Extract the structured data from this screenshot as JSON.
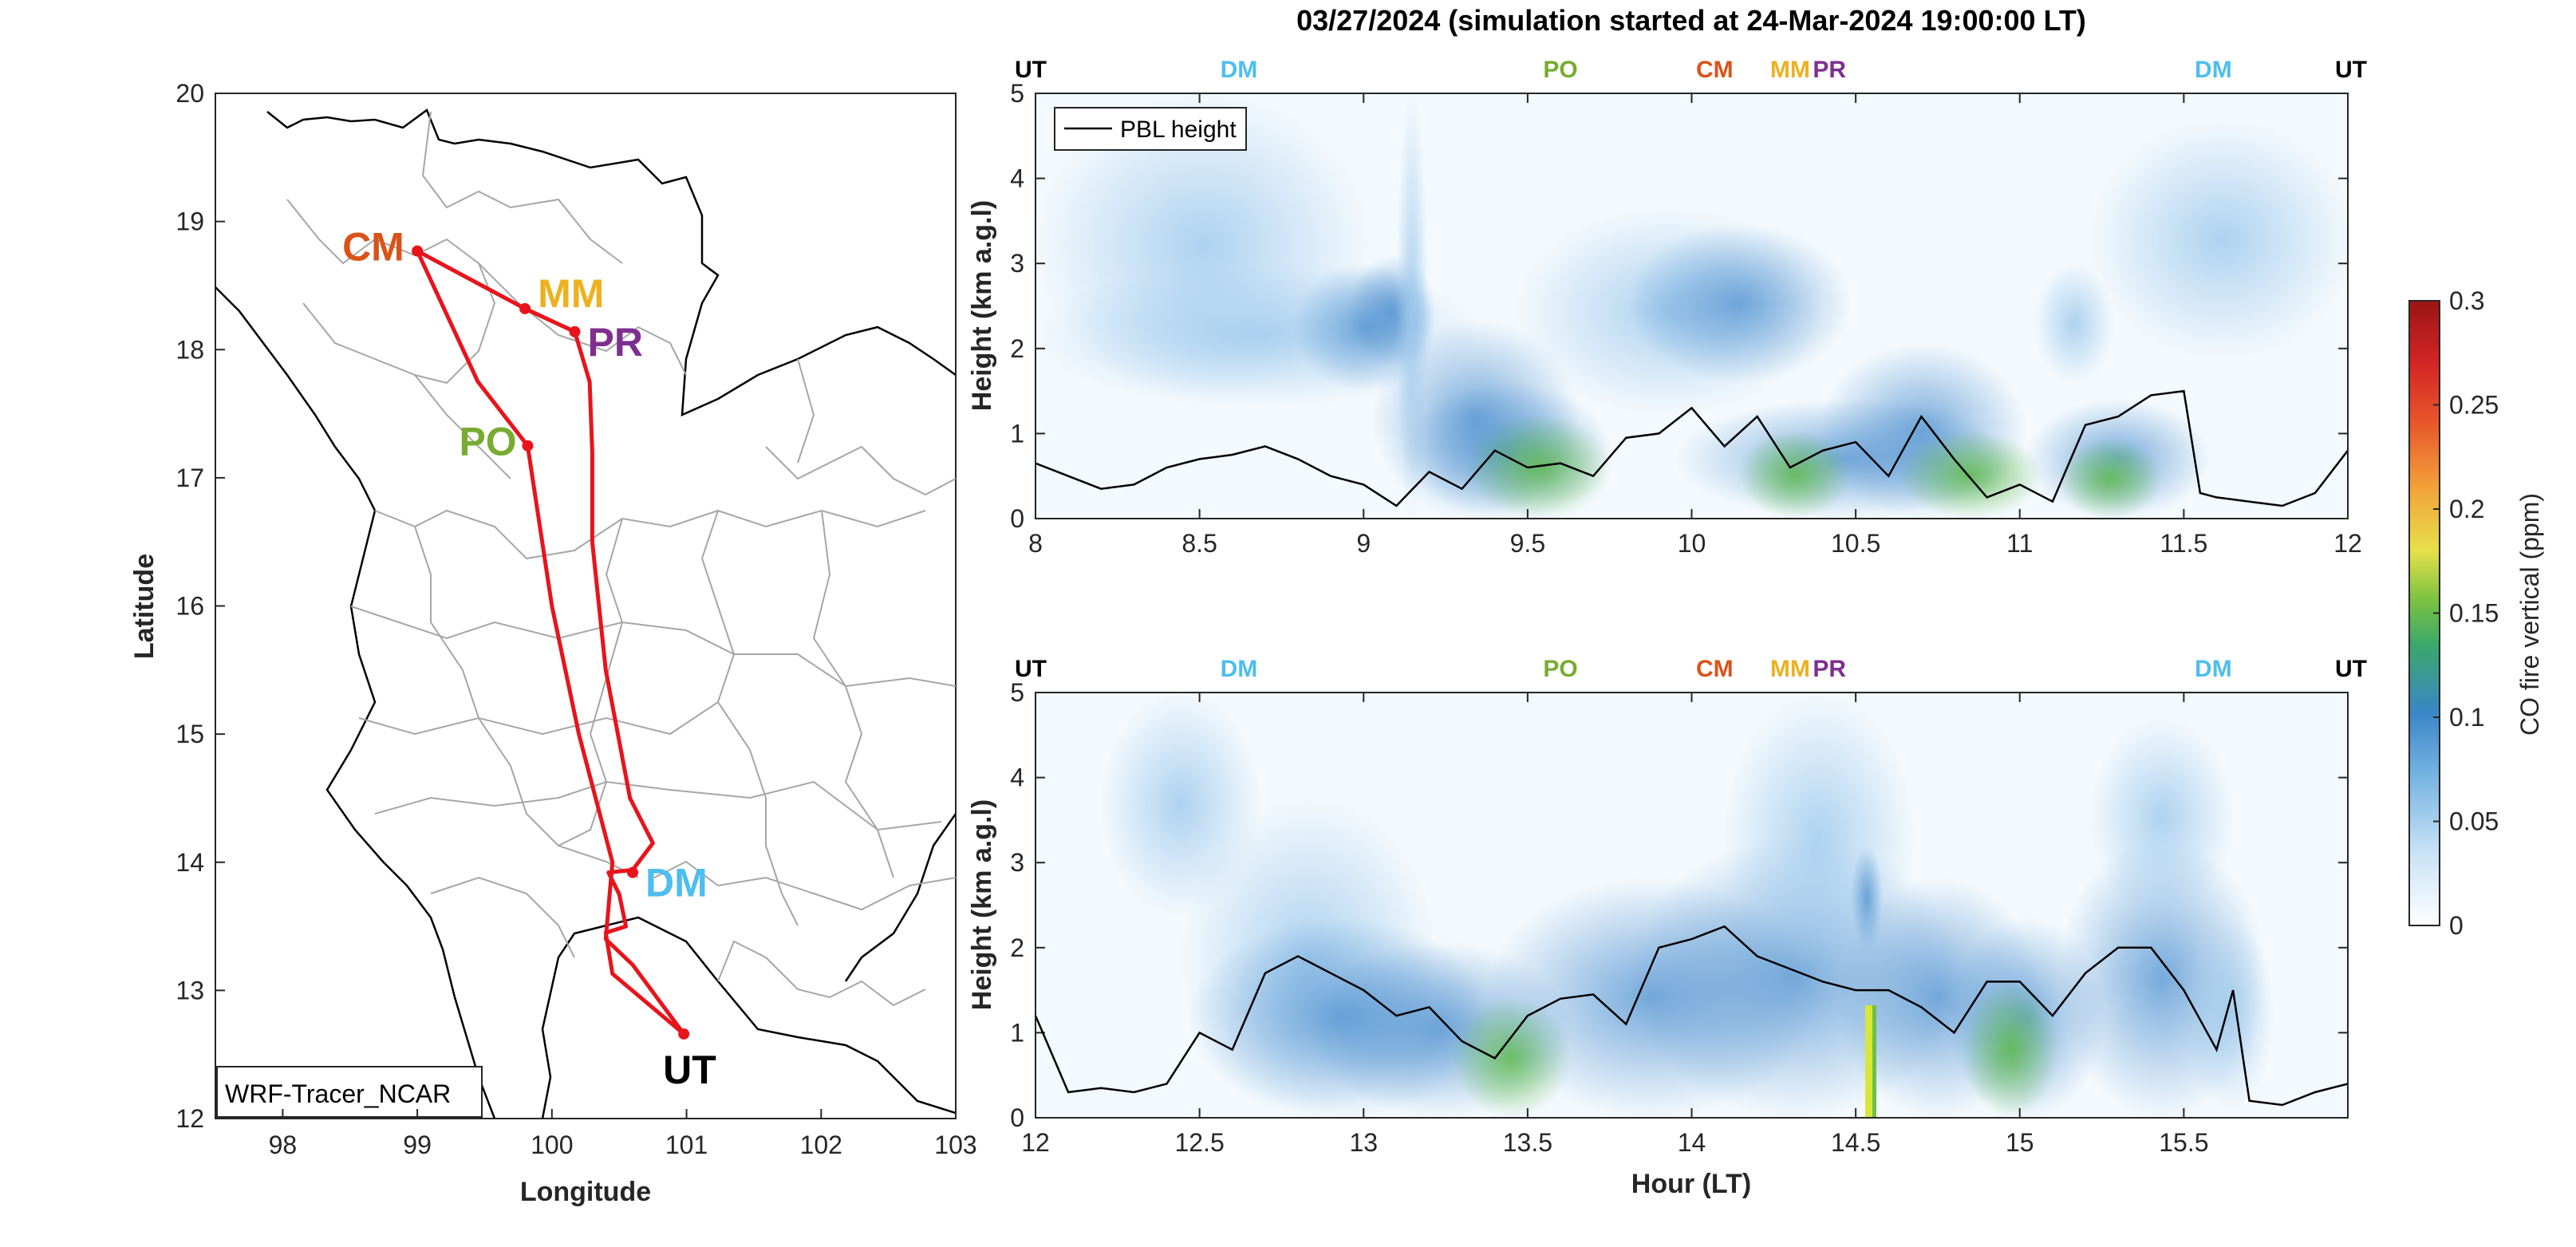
{
  "title": "03/27/2024 (simulation started at 24-Mar-2024 19:00:00 LT)",
  "map": {
    "xlabel": "Longitude",
    "ylabel": "Latitude",
    "xticks": [
      98,
      99,
      100,
      101,
      102,
      103
    ],
    "yticks": [
      12,
      13,
      14,
      15,
      16,
      17,
      18,
      19,
      20
    ],
    "xlim": [
      97.5,
      103
    ],
    "ylim": [
      12,
      20
    ],
    "legend": "WRF-Tracer_NCAR",
    "route_color": "#e8141b",
    "sites": [
      {
        "code": "CM",
        "lon": 99.0,
        "lat": 18.77,
        "color": "#d95319"
      },
      {
        "code": "MM",
        "lon": 99.8,
        "lat": 18.32,
        "color": "#edb120"
      },
      {
        "code": "PR",
        "lon": 100.17,
        "lat": 18.14,
        "color": "#7e2f8e"
      },
      {
        "code": "PO",
        "lon": 99.82,
        "lat": 17.25,
        "color": "#77ac30"
      },
      {
        "code": "DM",
        "lon": 100.6,
        "lat": 13.92,
        "color": "#4dbeee"
      },
      {
        "code": "UT",
        "lon": 100.98,
        "lat": 12.66,
        "color": "#000000"
      }
    ],
    "route": [
      [
        100.98,
        12.66
      ],
      [
        100.45,
        13.13
      ],
      [
        100.4,
        13.45
      ],
      [
        100.55,
        13.5
      ],
      [
        100.5,
        13.75
      ],
      [
        100.42,
        13.92
      ],
      [
        100.6,
        13.94
      ],
      [
        100.75,
        14.15
      ],
      [
        100.58,
        14.5
      ],
      [
        100.4,
        15.5
      ],
      [
        100.3,
        16.5
      ],
      [
        100.3,
        17.2
      ],
      [
        100.28,
        17.75
      ],
      [
        100.17,
        18.14
      ],
      [
        99.8,
        18.32
      ],
      [
        99.0,
        18.77
      ],
      [
        99.45,
        17.75
      ],
      [
        99.82,
        17.25
      ],
      [
        100.0,
        16.0
      ],
      [
        100.2,
        15.0
      ],
      [
        100.45,
        14.0
      ],
      [
        100.4,
        13.4
      ],
      [
        100.6,
        13.2
      ],
      [
        100.98,
        12.66
      ]
    ]
  },
  "panels": [
    {
      "id": "top",
      "ylabel": "Height (km a.g.l)",
      "xlabel": "",
      "xlim": [
        8,
        12
      ],
      "ylim": [
        0,
        5
      ],
      "xticks": [
        8,
        8.5,
        9,
        9.5,
        10,
        10.5,
        11,
        11.5,
        12
      ],
      "yticks": [
        0,
        1,
        2,
        3,
        4,
        5
      ],
      "legend": "PBL height",
      "site_labels": [
        {
          "text": "UT",
          "x": 8,
          "color": "#000000"
        },
        {
          "text": "DM",
          "x": 8.62,
          "color": "#4dbeee"
        },
        {
          "text": "PO",
          "x": 9.6,
          "color": "#77ac30"
        },
        {
          "text": "CM",
          "x": 10.07,
          "color": "#d95319"
        },
        {
          "text": "MM",
          "x": 10.3,
          "color": "#edb120"
        },
        {
          "text": "PR",
          "x": 10.42,
          "color": "#7e2f8e"
        },
        {
          "text": "DM",
          "x": 11.59,
          "color": "#4dbeee"
        },
        {
          "text": "UT",
          "x": 12,
          "color": "#000000"
        }
      ]
    },
    {
      "id": "bottom",
      "ylabel": "Height (km a.g.l)",
      "xlabel": "Hour (LT)",
      "xlim": [
        12,
        16
      ],
      "ylim": [
        0,
        5
      ],
      "xticks": [
        12,
        12.5,
        13,
        13.5,
        14,
        14.5,
        15,
        15.5
      ],
      "yticks": [
        0,
        1,
        2,
        3,
        4,
        5
      ],
      "legend": "",
      "site_labels": [
        {
          "text": "UT",
          "x": 12,
          "color": "#000000"
        },
        {
          "text": "DM",
          "x": 12.62,
          "color": "#4dbeee"
        },
        {
          "text": "PO",
          "x": 13.6,
          "color": "#77ac30"
        },
        {
          "text": "CM",
          "x": 14.07,
          "color": "#d95319"
        },
        {
          "text": "MM",
          "x": 14.3,
          "color": "#edb120"
        },
        {
          "text": "PR",
          "x": 14.42,
          "color": "#7e2f8e"
        },
        {
          "text": "DM",
          "x": 15.59,
          "color": "#4dbeee"
        },
        {
          "text": "UT",
          "x": 16,
          "color": "#000000"
        }
      ]
    }
  ],
  "colorbar": {
    "label": "CO fire vertical (ppm)",
    "ticks": [
      "0",
      "0.05",
      "0.1",
      "0.15",
      "0.2",
      "0.25",
      "0.3"
    ],
    "range": [
      0,
      0.3
    ]
  },
  "chart_data": {
    "type": "heatmap",
    "title": "03/27/2024 (simulation started at 24-Mar-2024 19:00:00 LT)",
    "colorbar": {
      "label": "CO fire vertical (ppm)",
      "range": [
        0,
        0.3
      ]
    },
    "series": [
      {
        "name": "PBL height",
        "panel": "top",
        "x": [
          8.0,
          8.1,
          8.2,
          8.3,
          8.4,
          8.5,
          8.6,
          8.7,
          8.8,
          8.9,
          9.0,
          9.1,
          9.2,
          9.3,
          9.4,
          9.5,
          9.6,
          9.7,
          9.8,
          9.9,
          10.0,
          10.1,
          10.2,
          10.3,
          10.4,
          10.5,
          10.6,
          10.7,
          10.8,
          10.9,
          11.0,
          11.1,
          11.2,
          11.3,
          11.4,
          11.5,
          11.55,
          11.6,
          11.7,
          11.8,
          11.9,
          12.0
        ],
        "y": [
          0.65,
          0.5,
          0.35,
          0.4,
          0.6,
          0.7,
          0.75,
          0.85,
          0.7,
          0.5,
          0.4,
          0.15,
          0.55,
          0.35,
          0.8,
          0.6,
          0.65,
          0.5,
          0.95,
          1.0,
          1.3,
          0.85,
          1.2,
          0.6,
          0.8,
          0.9,
          0.5,
          1.2,
          0.7,
          0.25,
          0.4,
          0.2,
          1.1,
          1.2,
          1.45,
          1.5,
          0.3,
          0.25,
          0.2,
          0.15,
          0.3,
          0.8
        ]
      },
      {
        "name": "PBL height",
        "panel": "bottom",
        "x": [
          12.0,
          12.1,
          12.2,
          12.3,
          12.4,
          12.5,
          12.6,
          12.7,
          12.8,
          12.9,
          13.0,
          13.1,
          13.2,
          13.3,
          13.4,
          13.5,
          13.6,
          13.7,
          13.8,
          13.9,
          14.0,
          14.1,
          14.2,
          14.3,
          14.4,
          14.5,
          14.6,
          14.7,
          14.8,
          14.9,
          15.0,
          15.1,
          15.2,
          15.3,
          15.4,
          15.5,
          15.6,
          15.65,
          15.7,
          15.8,
          15.9,
          16.0
        ],
        "y": [
          1.2,
          0.3,
          0.35,
          0.3,
          0.4,
          1.0,
          0.8,
          1.7,
          1.9,
          1.7,
          1.5,
          1.2,
          1.3,
          0.9,
          0.7,
          1.2,
          1.4,
          1.45,
          1.1,
          2.0,
          2.1,
          2.25,
          1.9,
          1.75,
          1.6,
          1.5,
          1.5,
          1.3,
          1.0,
          1.6,
          1.6,
          1.2,
          1.7,
          2.0,
          2.0,
          1.5,
          0.8,
          1.5,
          0.2,
          0.15,
          0.3,
          0.4
        ]
      }
    ]
  }
}
